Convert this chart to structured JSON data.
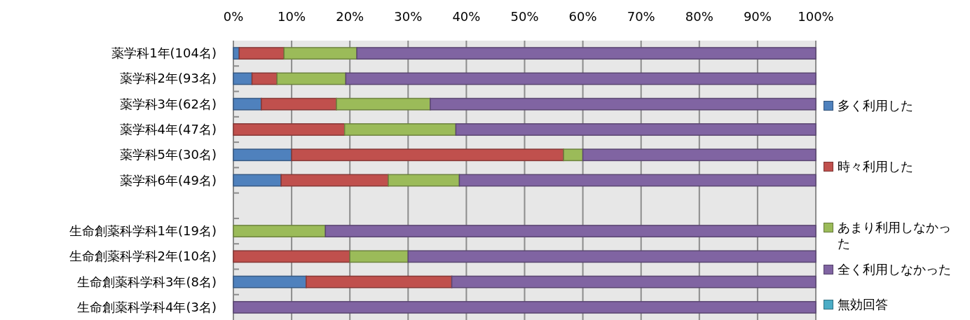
{
  "chart_data": {
    "type": "bar",
    "orientation": "horizontal",
    "stacked": true,
    "legend": "right",
    "grid": "x",
    "categories": [
      "薬学科1年(104名)",
      "薬学科2年(93名)",
      "薬学科3年(62名)",
      "薬学科4年(47名)",
      "薬学科5年(30名)",
      "薬学科6年(49名)",
      null,
      "生命創薬科学科1年(19名)",
      "生命創薬科学科2年(10名)",
      "生命創薬科学科3年(8名)",
      "生命創薬科学科4年(3名)"
    ],
    "series": [
      {
        "name": "多く利用した",
        "color": "#4f81bd",
        "values": [
          1.0,
          3.2,
          4.8,
          0,
          10.0,
          8.2,
          null,
          0,
          0,
          12.5,
          0
        ]
      },
      {
        "name": "時々利用した",
        "color": "#c0504d",
        "values": [
          7.7,
          4.3,
          12.9,
          19.1,
          46.7,
          18.4,
          null,
          0,
          20.0,
          25.0,
          0
        ]
      },
      {
        "name": "あまり利用しなかった",
        "color": "#9bbb59",
        "values": [
          12.5,
          11.8,
          16.1,
          19.1,
          3.3,
          12.2,
          null,
          15.8,
          10.0,
          0,
          0
        ]
      },
      {
        "name": "全く利用しなかった",
        "color": "#8064a2",
        "values": [
          78.8,
          80.7,
          66.2,
          61.8,
          40.0,
          61.2,
          null,
          84.2,
          70.0,
          62.5,
          100
        ]
      },
      {
        "name": "無効回答",
        "color": "#4bacc6",
        "values": [
          0,
          0,
          0,
          0,
          0,
          0,
          null,
          0,
          0,
          0,
          0
        ]
      }
    ],
    "xlim": [
      0,
      100
    ],
    "xticks": [
      {
        "value": 0,
        "label": "0%"
      },
      {
        "value": 10,
        "label": "10%"
      },
      {
        "value": 20,
        "label": "20%"
      },
      {
        "value": 30,
        "label": "30%"
      },
      {
        "value": 40,
        "label": "40%"
      },
      {
        "value": 50,
        "label": "50%"
      },
      {
        "value": 60,
        "label": "60%"
      },
      {
        "value": 70,
        "label": "70%"
      },
      {
        "value": 80,
        "label": "80%"
      },
      {
        "value": 90,
        "label": "90%"
      },
      {
        "value": 100,
        "label": "100%"
      }
    ]
  }
}
